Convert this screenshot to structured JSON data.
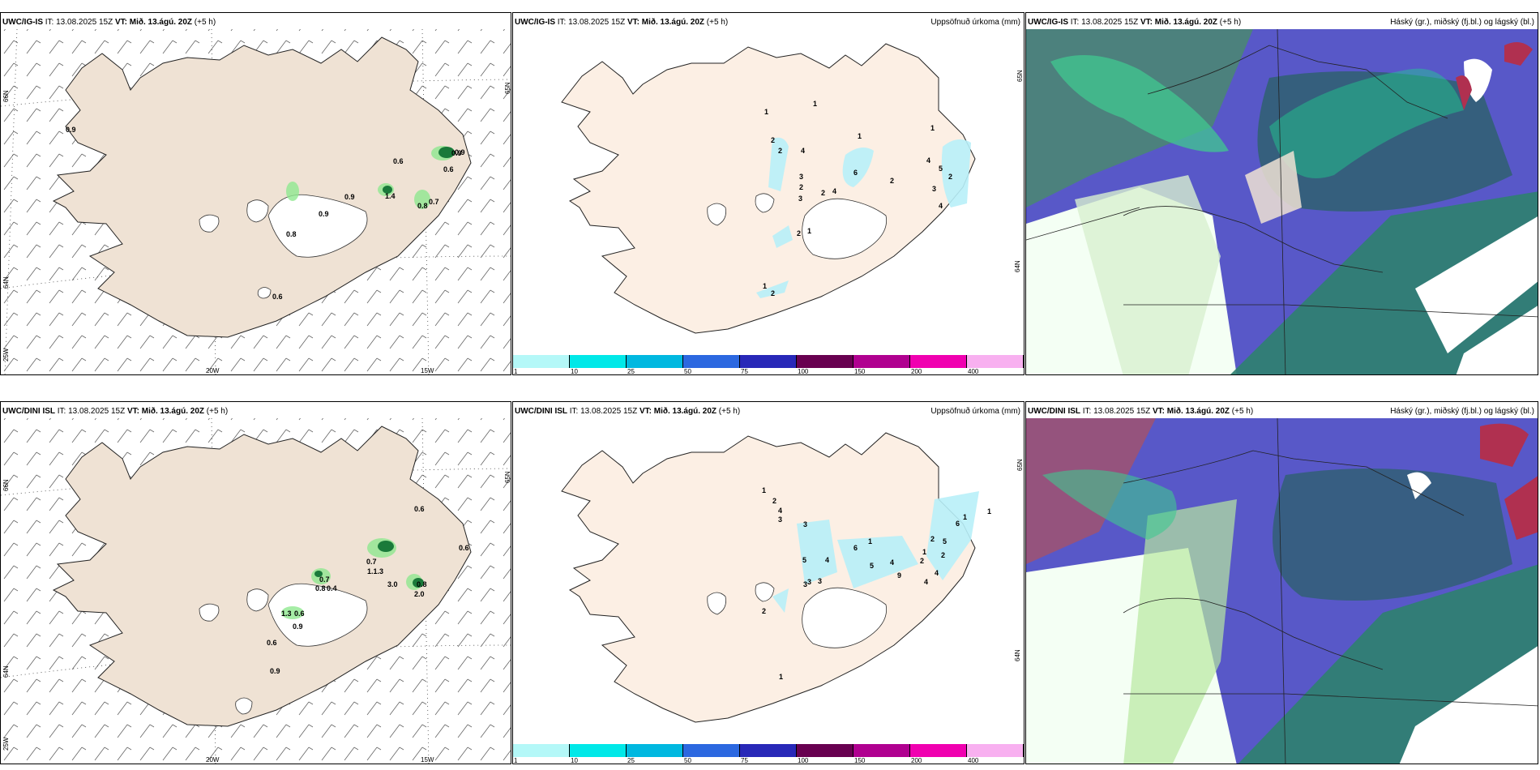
{
  "panels": {
    "tl": {
      "model": "UWC/IG-IS",
      "it": "IT: 13.08.2025 15Z",
      "vt_label": "VT:",
      "vt_value": "Mið. 13.ágú. 20Z",
      "lead": "(+5 h)",
      "right": ""
    },
    "tm": {
      "model": "UWC/IG-IS",
      "it": "IT: 13.08.2025 15Z",
      "vt_label": "VT:",
      "vt_value": "Mið. 13.ágú. 20Z",
      "lead": "(+5 h)",
      "right": "Uppsöfnuð úrkoma (mm)"
    },
    "tr": {
      "model": "UWC/IG-IS",
      "it": "IT: 13.08.2025 15Z",
      "vt_label": "VT:",
      "vt_value": "Mið. 13.ágú. 20Z",
      "lead": "(+5 h)",
      "right": "Háský (gr.), miðský (fj.bl.) og lágský (bl.)"
    },
    "bl": {
      "model": "UWC/DINI ISL",
      "it": "IT: 13.08.2025 15Z",
      "vt_label": "VT:",
      "vt_value": "Mið. 13.ágú. 20Z",
      "lead": "(+5 h)",
      "right": ""
    },
    "bm": {
      "model": "UWC/DINI ISL",
      "it": "IT: 13.08.2025 15Z",
      "vt_label": "VT:",
      "vt_value": "Mið. 13.ágú. 20Z",
      "lead": "(+5 h)",
      "right": "Uppsöfnuð úrkoma (mm)"
    },
    "br": {
      "model": "UWC/DINI ISL",
      "it": "IT: 13.08.2025 15Z",
      "vt_label": "VT:",
      "vt_value": "Mið. 13.ágú. 20Z",
      "lead": "(+5 h)",
      "right": "Háský (gr.), miðský (fj.bl.) og lágský (bl.)"
    }
  },
  "grid_labels": {
    "lat_66": "66N",
    "lat_64": "64N",
    "lat_65": "65N",
    "lon_20": "20W",
    "lon_15": "15W",
    "lon_25": "25W"
  },
  "colorbar": {
    "ticks": [
      "1",
      "10",
      "25",
      "50",
      "75",
      "100",
      "150",
      "200",
      "400"
    ],
    "colors": [
      "#b4f8f8",
      "#00e8e8",
      "#00b8e0",
      "#2c68e0",
      "#2828b8",
      "#680050",
      "#b00090",
      "#f000b0",
      "#f8b0f0"
    ]
  },
  "values_tl": [
    "0.9",
    "0.6",
    "0.6",
    "0.9",
    "0.8",
    "0.7",
    "0.9",
    "0.9",
    "0.8",
    "0.6",
    "1.4",
    "0.9"
  ],
  "values_bl": [
    "0.6",
    "0.6",
    "0.7",
    "1.1.3",
    "0.7",
    "0.8",
    "0.4",
    "3.0",
    "0.8",
    "2.0",
    "1.3",
    "0.6",
    "0.9",
    "0.6",
    "0.9"
  ],
  "precip_tm": [
    "1",
    "1",
    "1",
    "1",
    "2",
    "2",
    "4",
    "3",
    "2",
    "3",
    "2",
    "4",
    "6",
    "2",
    "4",
    "5",
    "2",
    "3",
    "4",
    "2",
    "1",
    "1",
    "2"
  ],
  "precip_bm": [
    "1",
    "2",
    "4",
    "3",
    "3",
    "5",
    "4",
    "3",
    "3",
    "6",
    "1",
    "5",
    "4",
    "9",
    "1",
    "2",
    "4",
    "4",
    "2",
    "1",
    "2",
    "1",
    "6",
    "5",
    "3",
    "2",
    "1"
  ],
  "colors": {
    "land": "#efe2d4",
    "land_pale": "#fcefe4",
    "light_precip": "#b8f0f8",
    "green_precip": "#90e890"
  }
}
